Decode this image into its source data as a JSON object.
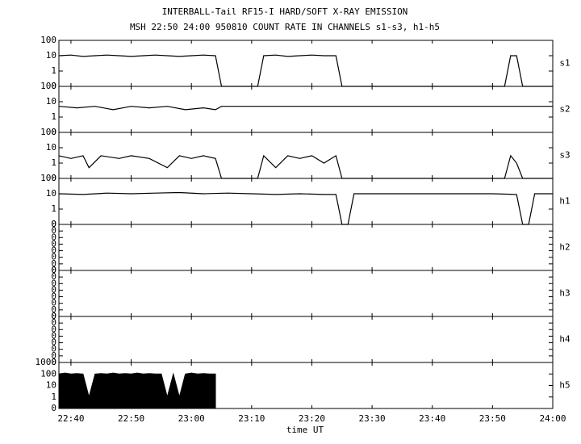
{
  "chart_data": [
    {
      "type": "line",
      "title": "INTERBALL-Tail RF15-I HARD/SOFT X-RAY EMISSION",
      "subtitle": "MSH 22:50 24:00 950810  COUNT RATE IN CHANNELS s1-s3, h1-h5",
      "label": "s1",
      "color": "#000000",
      "yscale": "log",
      "xlim": [
        "22:38",
        "24:00"
      ],
      "xticks": [
        "22:40",
        "22:50",
        "23:00",
        "23:10",
        "23:20",
        "23:30",
        "23:40",
        "23:50",
        "24:00"
      ],
      "ylim": [
        0,
        100
      ],
      "yticks": [
        0,
        1,
        10,
        100
      ],
      "x": [
        "22:38",
        "22:40",
        "22:42",
        "22:44",
        "22:46",
        "22:48",
        "22:50",
        "22:52",
        "22:54",
        "22:56",
        "22:58",
        "23:00",
        "23:02",
        "23:04",
        "23:05",
        "23:11",
        "23:12",
        "23:14",
        "23:16",
        "23:18",
        "23:20",
        "23:22",
        "23:24",
        "23:25",
        "23:52",
        "23:53",
        "23:54",
        "23:55",
        "24:00"
      ],
      "values": [
        10,
        11,
        9,
        10,
        11,
        10,
        9,
        10,
        11,
        10,
        9,
        10,
        11,
        10,
        0,
        0,
        10,
        11,
        9,
        10,
        11,
        10,
        10,
        0,
        0,
        10,
        10,
        0,
        0
      ]
    },
    {
      "type": "line",
      "label": "s2",
      "color": "#000000",
      "yscale": "log",
      "xlim": [
        "22:38",
        "24:00"
      ],
      "xticks": [
        "22:40",
        "22:50",
        "23:00",
        "23:10",
        "23:20",
        "23:30",
        "23:40",
        "23:50",
        "24:00"
      ],
      "ylim": [
        0,
        100
      ],
      "yticks": [
        0,
        1,
        10,
        100
      ],
      "x": [
        "22:38",
        "22:41",
        "22:44",
        "22:47",
        "22:50",
        "22:53",
        "22:56",
        "22:59",
        "23:02",
        "23:04",
        "23:05",
        "23:10",
        "23:15",
        "23:20",
        "23:25",
        "23:30",
        "23:35",
        "23:40",
        "23:45",
        "23:50",
        "23:55",
        "24:00"
      ],
      "values": [
        5,
        4,
        5,
        3,
        5,
        4,
        5,
        3,
        4,
        3,
        5,
        5,
        5,
        5,
        5,
        5,
        5,
        5,
        5,
        5,
        5,
        5
      ]
    },
    {
      "type": "line",
      "label": "s3",
      "color": "#000000",
      "yscale": "log",
      "xlim": [
        "22:38",
        "24:00"
      ],
      "xticks": [
        "22:40",
        "22:50",
        "23:00",
        "23:10",
        "23:20",
        "23:30",
        "23:40",
        "23:50",
        "24:00"
      ],
      "ylim": [
        0,
        100
      ],
      "yticks": [
        0,
        1,
        10,
        100
      ],
      "x": [
        "22:38",
        "22:40",
        "22:42",
        "22:43",
        "22:45",
        "22:48",
        "22:50",
        "22:53",
        "22:56",
        "22:58",
        "23:00",
        "23:02",
        "23:04",
        "23:05",
        "23:11",
        "23:12",
        "23:14",
        "23:16",
        "23:18",
        "23:20",
        "23:22",
        "23:24",
        "23:25",
        "23:52",
        "23:53",
        "23:54",
        "23:55",
        "24:00"
      ],
      "values": [
        3,
        2,
        3,
        0.5,
        3,
        2,
        3,
        2,
        0.5,
        3,
        2,
        3,
        2,
        0,
        0,
        3,
        0.5,
        3,
        2,
        3,
        1,
        3,
        0,
        0,
        3,
        1,
        0,
        0
      ]
    },
    {
      "type": "line",
      "label": "h1",
      "color": "#000000",
      "yscale": "log",
      "xlim": [
        "22:38",
        "24:00"
      ],
      "xticks": [
        "22:40",
        "22:50",
        "23:00",
        "23:10",
        "23:20",
        "23:30",
        "23:40",
        "23:50",
        "24:00"
      ],
      "ylim": [
        0,
        100
      ],
      "yticks": [
        0,
        1,
        10,
        100
      ],
      "x": [
        "22:38",
        "22:42",
        "22:46",
        "22:50",
        "22:54",
        "22:58",
        "23:02",
        "23:06",
        "23:10",
        "23:14",
        "23:18",
        "23:22",
        "23:24",
        "23:25",
        "23:26",
        "23:27",
        "23:32",
        "23:38",
        "23:44",
        "23:50",
        "23:54",
        "23:55",
        "23:56",
        "23:57",
        "24:00"
      ],
      "values": [
        10,
        9,
        11,
        10,
        11,
        12,
        10,
        11,
        10,
        9,
        10,
        9,
        9,
        0,
        0,
        10,
        10,
        10,
        10,
        10,
        9,
        0,
        0,
        10,
        10
      ]
    },
    {
      "type": "line",
      "label": "h2",
      "color": "#000000",
      "yscale": "linear",
      "xlim": [
        "22:38",
        "24:00"
      ],
      "xticks": [
        "22:40",
        "22:50",
        "23:00",
        "23:10",
        "23:20",
        "23:30",
        "23:40",
        "23:50",
        "24:00"
      ],
      "ylim": [
        0,
        0.7
      ],
      "yticks": [
        {
          "value": 0,
          "label": "0"
        },
        {
          "value": 0.1,
          "label": "0"
        },
        {
          "value": 0.2,
          "label": "0"
        },
        {
          "value": 0.3,
          "label": "0"
        },
        {
          "value": 0.4,
          "label": "0"
        },
        {
          "value": 0.5,
          "label": "0"
        },
        {
          "value": 0.6,
          "label": "0"
        },
        {
          "value": 0.7,
          "label": "0"
        }
      ],
      "x": [],
      "values": []
    },
    {
      "type": "line",
      "label": "h3",
      "color": "#000000",
      "yscale": "linear",
      "xlim": [
        "22:38",
        "24:00"
      ],
      "xticks": [
        "22:40",
        "22:50",
        "23:00",
        "23:10",
        "23:20",
        "23:30",
        "23:40",
        "23:50",
        "24:00"
      ],
      "ylim": [
        0,
        0.7
      ],
      "yticks": [
        {
          "value": 0,
          "label": "0"
        },
        {
          "value": 0.1,
          "label": "0"
        },
        {
          "value": 0.2,
          "label": "0"
        },
        {
          "value": 0.3,
          "label": "0"
        },
        {
          "value": 0.4,
          "label": "0"
        },
        {
          "value": 0.5,
          "label": "0"
        },
        {
          "value": 0.6,
          "label": "0"
        },
        {
          "value": 0.7,
          "label": "0"
        }
      ],
      "x": [],
      "values": []
    },
    {
      "type": "line",
      "label": "h4",
      "color": "#000000",
      "yscale": "linear",
      "xlim": [
        "22:38",
        "24:00"
      ],
      "xticks": [
        "22:40",
        "22:50",
        "23:00",
        "23:10",
        "23:20",
        "23:30",
        "23:40",
        "23:50",
        "24:00"
      ],
      "ylim": [
        0,
        0.7
      ],
      "yticks": [
        {
          "value": 0,
          "label": "0"
        },
        {
          "value": 0.1,
          "label": "0"
        },
        {
          "value": 0.2,
          "label": "0"
        },
        {
          "value": 0.3,
          "label": "0"
        },
        {
          "value": 0.4,
          "label": "0"
        },
        {
          "value": 0.5,
          "label": "0"
        },
        {
          "value": 0.6,
          "label": "0"
        },
        {
          "value": 0.7,
          "label": "0"
        }
      ],
      "x": [],
      "values": []
    },
    {
      "type": "area",
      "label": "h5",
      "color": "#000000",
      "yscale": "log",
      "xlabel": "time UT",
      "xlim": [
        "22:38",
        "24:00"
      ],
      "xticks": [
        "22:40",
        "22:50",
        "23:00",
        "23:10",
        "23:20",
        "23:30",
        "23:40",
        "23:50",
        "24:00"
      ],
      "ylim": [
        0,
        1000
      ],
      "yticks": [
        0,
        1,
        10,
        100,
        1000
      ],
      "x": [
        "22:38",
        "22:39",
        "22:40",
        "22:41",
        "22:42",
        "22:43",
        "22:44",
        "22:45",
        "22:46",
        "22:47",
        "22:48",
        "22:49",
        "22:50",
        "22:51",
        "22:52",
        "22:53",
        "22:54",
        "22:55",
        "22:56",
        "22:57",
        "22:58",
        "22:59",
        "23:00",
        "23:01",
        "23:02",
        "23:03",
        "23:04"
      ],
      "values": [
        100,
        120,
        100,
        110,
        100,
        1,
        100,
        110,
        100,
        120,
        100,
        110,
        100,
        120,
        100,
        110,
        100,
        100,
        1,
        100,
        1,
        100,
        120,
        100,
        110,
        100,
        100
      ]
    }
  ]
}
